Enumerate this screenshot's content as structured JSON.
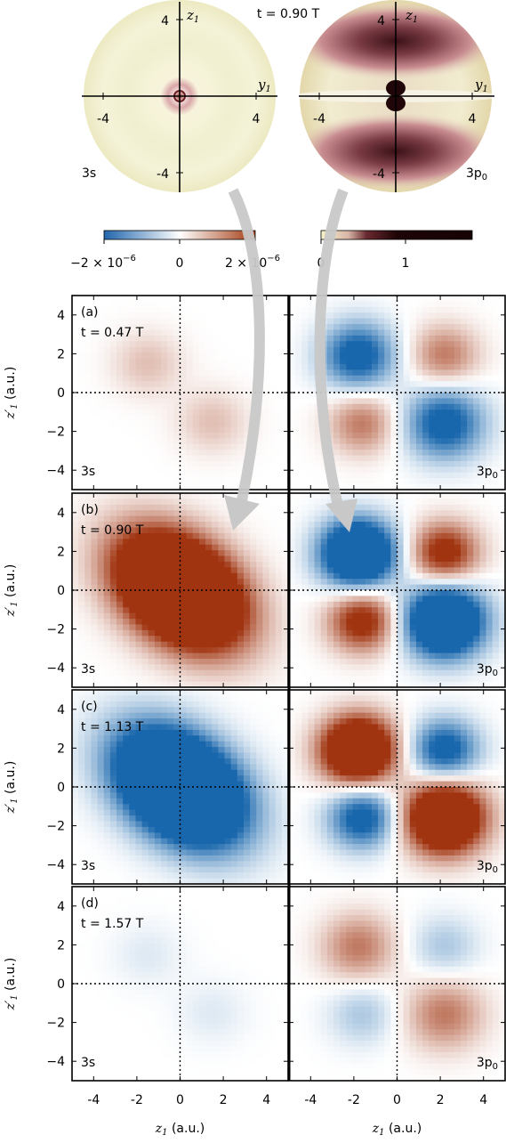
{
  "top": {
    "time_label": "t = 0.90 T",
    "left_disc": {
      "state": "3s",
      "axis_z": "z",
      "axis_y": "y",
      "axis_sub": "1",
      "ticks": [
        {
          "value": -4,
          "label": "-4"
        },
        {
          "value": 4,
          "label": "4"
        }
      ]
    },
    "right_disc": {
      "state": "3p",
      "state_sub": "0",
      "axis_z": "z",
      "axis_y": "y",
      "axis_sub": "1",
      "ticks": [
        {
          "value": -4,
          "label": "-4"
        },
        {
          "value": 4,
          "label": "4"
        }
      ]
    },
    "colorbar_left": {
      "tick_labels": [
        "−2 × 10",
        "0",
        "2 × 10"
      ],
      "exponent": "−6",
      "values": [
        -2e-06,
        0,
        2e-06
      ]
    },
    "colorbar_right": {
      "tick_labels": [
        "0",
        "1"
      ],
      "values": [
        0,
        1
      ]
    }
  },
  "chart_data": {
    "type": "heatmap",
    "x_range": [
      -5,
      5
    ],
    "y_range": [
      -5,
      5
    ],
    "x_ticks": [
      -4,
      -2,
      0,
      2,
      4
    ],
    "y_ticks": [
      -4,
      -2,
      0,
      2,
      4
    ],
    "xlabel": "z",
    "xlabel_sub": "1",
    "xlabel_unit": " (a.u.)",
    "ylabel": "z",
    "ylabel_prime": "′",
    "ylabel_sub": "1",
    "ylabel_unit": " (a.u.)",
    "columns": [
      {
        "state": "3s",
        "sub": ""
      },
      {
        "state": "3p",
        "sub": "0"
      }
    ],
    "rows": [
      {
        "panel": "(a)",
        "time": "t = 0.47 T",
        "amp_3s": 0.45,
        "amp_3p": -0.55
      },
      {
        "panel": "(b)",
        "time": "t = 0.90 T",
        "amp_3s": 1.0,
        "amp_3p": -1.0
      },
      {
        "panel": "(c)",
        "time": "t = 1.13 T",
        "amp_3s": -1.0,
        "amp_3p": 1.0
      },
      {
        "panel": "(d)",
        "time": "t = 1.57 T",
        "amp_3s": -0.2,
        "amp_3p": 0.3
      }
    ]
  }
}
